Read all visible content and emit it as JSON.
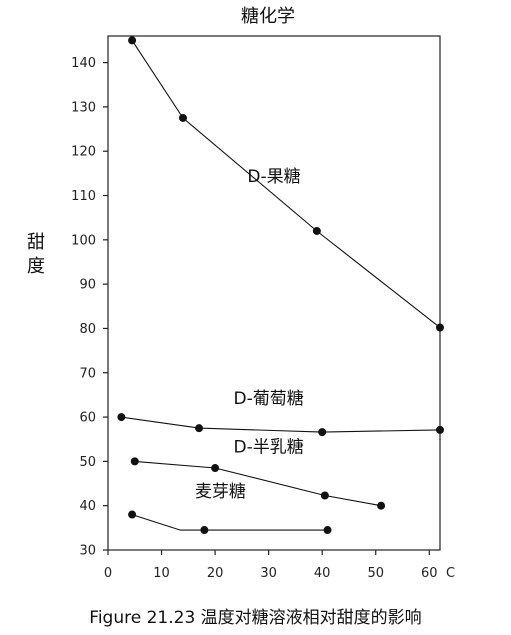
{
  "caption": "Figure 21.23  温度对糖溶液相对甜度的影响",
  "chart_data": {
    "type": "line",
    "title": "糖化学",
    "ylabel": "甜度",
    "xunit": "C",
    "xlim": [
      0,
      62
    ],
    "ylim": [
      30,
      146
    ],
    "xticks": [
      0,
      10,
      20,
      30,
      40,
      50,
      60
    ],
    "yticks": [
      30,
      40,
      50,
      60,
      70,
      80,
      90,
      100,
      110,
      120,
      130,
      140
    ],
    "grid": false,
    "series": [
      {
        "name": "D-果糖",
        "points": [
          [
            4.5,
            145
          ],
          [
            14,
            127.5
          ],
          [
            39,
            102
          ],
          [
            62,
            80.2
          ]
        ]
      },
      {
        "name": "D-葡萄糖",
        "points": [
          [
            2.5,
            60
          ],
          [
            17,
            57.5
          ],
          [
            40,
            56.6
          ],
          [
            62,
            57.1
          ]
        ]
      },
      {
        "name": "D-半乳糖",
        "points": [
          [
            5,
            50
          ],
          [
            20,
            48.5
          ],
          [
            40.5,
            42.3
          ],
          [
            51,
            40
          ]
        ]
      },
      {
        "name": "麦芽糖",
        "points": [
          [
            4.5,
            38
          ],
          [
            13.5,
            34.5
          ],
          [
            18,
            34.5
          ],
          [
            41,
            34.5
          ]
        ],
        "markers": [
          0,
          2,
          3
        ]
      }
    ]
  }
}
